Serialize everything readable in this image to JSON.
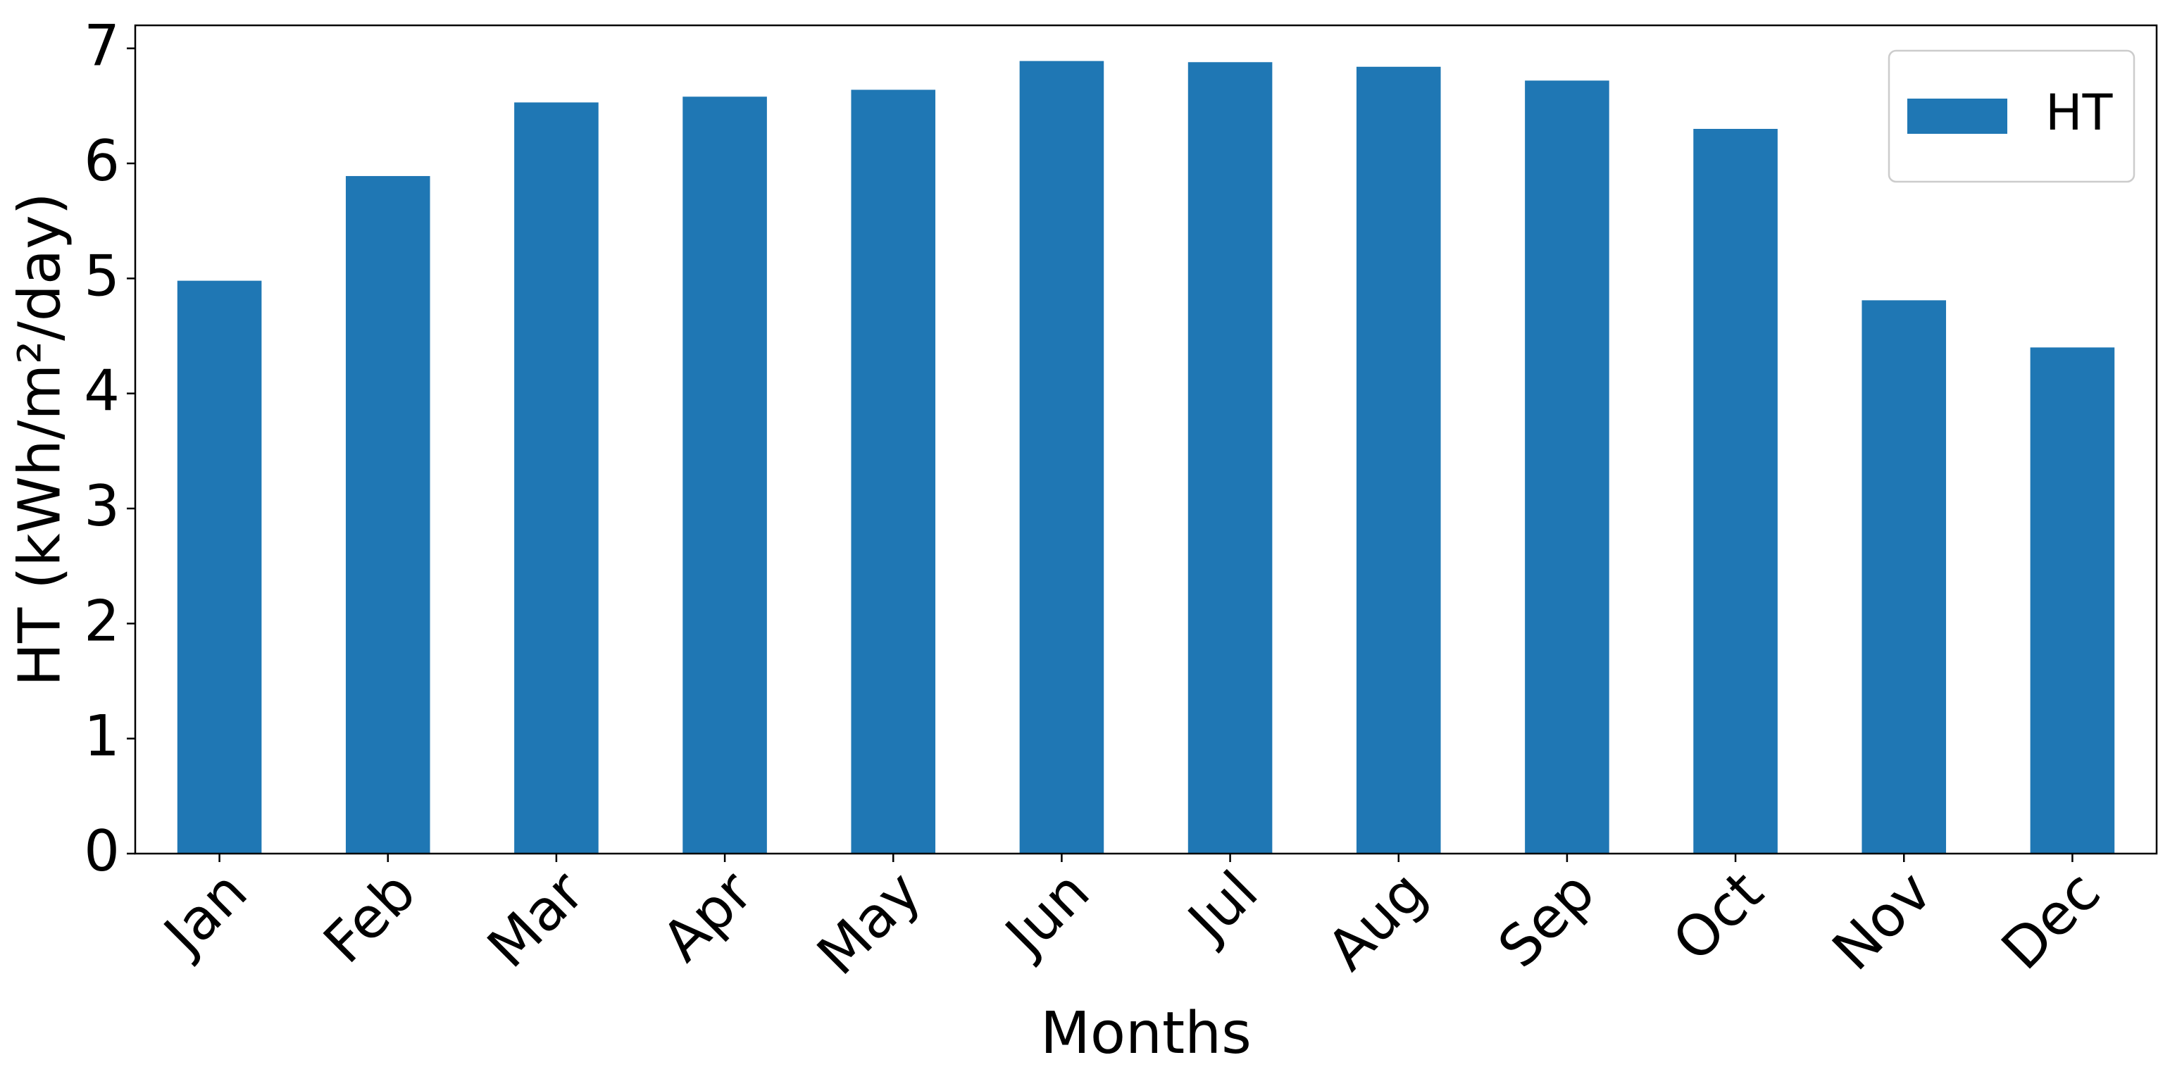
{
  "chart_data": {
    "type": "bar",
    "title": "",
    "xlabel": "Months",
    "ylabel": "HT (kWh/m²/day)",
    "categories": [
      "Jan",
      "Feb",
      "Mar",
      "Apr",
      "May",
      "Jun",
      "Jul",
      "Aug",
      "Sep",
      "Oct",
      "Nov",
      "Dec"
    ],
    "series": [
      {
        "name": "HT",
        "color": "#1f77b4",
        "values": [
          4.98,
          5.89,
          6.53,
          6.58,
          6.64,
          6.89,
          6.88,
          6.84,
          6.72,
          6.3,
          4.81,
          4.4
        ]
      }
    ],
    "ylim": [
      0,
      7.2
    ],
    "yticks": [
      0,
      1,
      2,
      3,
      4,
      5,
      6,
      7
    ],
    "grid": false,
    "legend": {
      "position": "top-right",
      "entries": [
        "HT"
      ]
    }
  }
}
